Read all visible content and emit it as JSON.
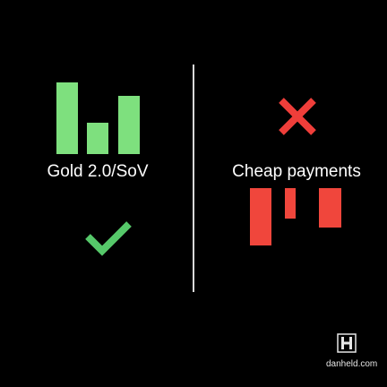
{
  "left_panel": {
    "label": "Gold 2.0/SoV",
    "chart_color": "#7ee07e",
    "verdict_icon": "check-icon",
    "verdict_color": "#56c86a"
  },
  "right_panel": {
    "label": "Cheap payments",
    "chart_color": "#f0463c",
    "verdict_icon": "cross-icon",
    "verdict_color": "#ef3e3a"
  },
  "brand": {
    "logo_icon": "h-logo-icon",
    "text": "danheld.com"
  }
}
